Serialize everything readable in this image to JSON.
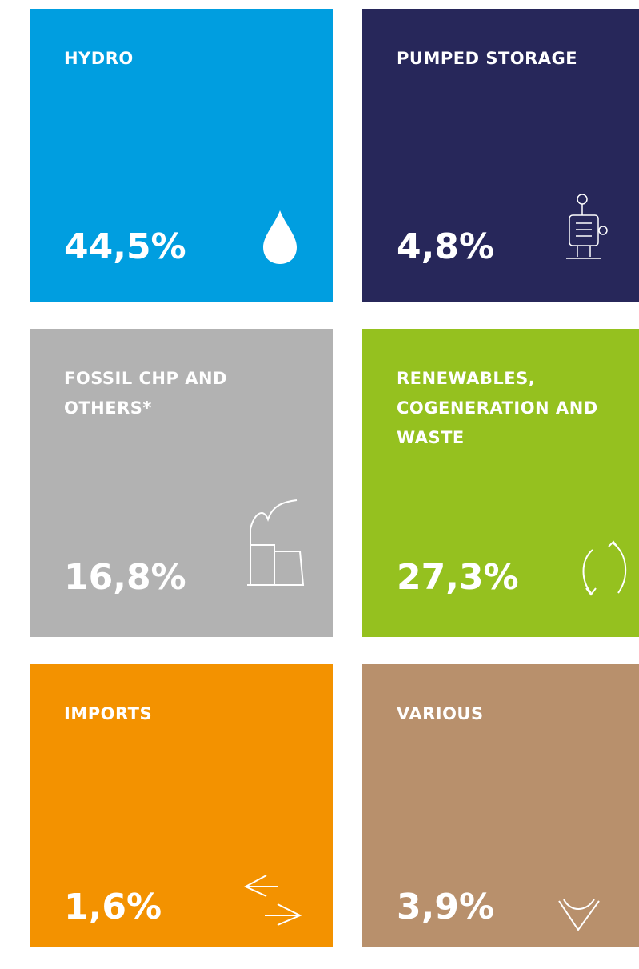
{
  "tiles": [
    {
      "label": "HYDRO",
      "value": "44,5%",
      "color": "#009ee0"
    },
    {
      "label": "PUMPED STORAGE",
      "value": "4,8%",
      "color": "#27275a"
    },
    {
      "label": "FOSSIL CHP AND OTHERS*",
      "value": "16,8%",
      "color": "#b2b2b2"
    },
    {
      "label": "RENEWABLES, COGENERATION AND WASTE",
      "value": "27,3%",
      "color": "#95c11f"
    },
    {
      "label": "IMPORTS",
      "value": "1,6%",
      "color": "#f39200"
    },
    {
      "label": "VARIOUS",
      "value": "3,9%",
      "color": "#b8906c"
    }
  ]
}
